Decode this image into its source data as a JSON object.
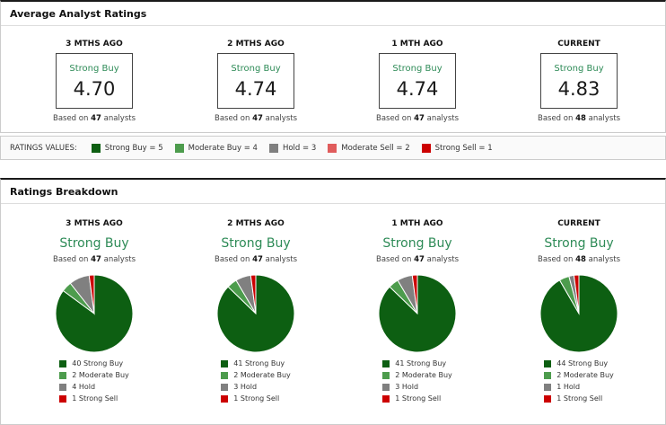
{
  "strings": {
    "based_prefix": "Based on",
    "based_suffix": "analysts"
  },
  "colors": {
    "strong_buy": "#0d5f12",
    "moderate_buy": "#4d9c4d",
    "hold": "#808080",
    "moderate_sell": "#e05c5c",
    "strong_sell": "#cc0000",
    "rating_text_green": "#2e8b57"
  },
  "average_ratings": {
    "title": "Average Analyst Ratings",
    "columns": [
      {
        "period": "3 MTHS AGO",
        "rating": "Strong Buy",
        "value": "4.70",
        "analysts": "47"
      },
      {
        "period": "2 MTHS AGO",
        "rating": "Strong Buy",
        "value": "4.74",
        "analysts": "47"
      },
      {
        "period": "1 MTH AGO",
        "rating": "Strong Buy",
        "value": "4.74",
        "analysts": "47"
      },
      {
        "period": "CURRENT",
        "rating": "Strong Buy",
        "value": "4.83",
        "analysts": "48"
      }
    ]
  },
  "ratings_values": {
    "label": "RATINGS VALUES:",
    "items": [
      {
        "label": "Strong Buy = 5",
        "color": "#0d5f12"
      },
      {
        "label": "Moderate Buy = 4",
        "color": "#4d9c4d"
      },
      {
        "label": "Hold = 3",
        "color": "#808080"
      },
      {
        "label": "Moderate Sell = 2",
        "color": "#e05c5c"
      },
      {
        "label": "Strong Sell = 1",
        "color": "#cc0000"
      }
    ]
  },
  "breakdown": {
    "title": "Ratings Breakdown",
    "columns": [
      {
        "period": "3 MTHS AGO",
        "rating": "Strong Buy",
        "analysts": "47",
        "slices": [
          {
            "label": "40 Strong Buy",
            "value": 40,
            "color": "#0d5f12"
          },
          {
            "label": "2 Moderate Buy",
            "value": 2,
            "color": "#4d9c4d"
          },
          {
            "label": "4 Hold",
            "value": 4,
            "color": "#808080"
          },
          {
            "label": "1 Strong Sell",
            "value": 1,
            "color": "#cc0000"
          }
        ]
      },
      {
        "period": "2 MTHS AGO",
        "rating": "Strong Buy",
        "analysts": "47",
        "slices": [
          {
            "label": "41 Strong Buy",
            "value": 41,
            "color": "#0d5f12"
          },
          {
            "label": "2 Moderate Buy",
            "value": 2,
            "color": "#4d9c4d"
          },
          {
            "label": "3 Hold",
            "value": 3,
            "color": "#808080"
          },
          {
            "label": "1 Strong Sell",
            "value": 1,
            "color": "#cc0000"
          }
        ]
      },
      {
        "period": "1 MTH AGO",
        "rating": "Strong Buy",
        "analysts": "47",
        "slices": [
          {
            "label": "41 Strong Buy",
            "value": 41,
            "color": "#0d5f12"
          },
          {
            "label": "2 Moderate Buy",
            "value": 2,
            "color": "#4d9c4d"
          },
          {
            "label": "3 Hold",
            "value": 3,
            "color": "#808080"
          },
          {
            "label": "1 Strong Sell",
            "value": 1,
            "color": "#cc0000"
          }
        ]
      },
      {
        "period": "CURRENT",
        "rating": "Strong Buy",
        "analysts": "48",
        "slices": [
          {
            "label": "44 Strong Buy",
            "value": 44,
            "color": "#0d5f12"
          },
          {
            "label": "2 Moderate Buy",
            "value": 2,
            "color": "#4d9c4d"
          },
          {
            "label": "1 Hold",
            "value": 1,
            "color": "#808080"
          },
          {
            "label": "1 Strong Sell",
            "value": 1,
            "color": "#cc0000"
          }
        ]
      }
    ]
  },
  "chart_data": [
    {
      "type": "table",
      "title": "Average Analyst Ratings",
      "categories": [
        "3 MTHS AGO",
        "2 MTHS AGO",
        "1 MTH AGO",
        "CURRENT"
      ],
      "values": [
        4.7,
        4.74,
        4.74,
        4.83
      ],
      "rating_labels": [
        "Strong Buy",
        "Strong Buy",
        "Strong Buy",
        "Strong Buy"
      ],
      "analysts": [
        47,
        47,
        47,
        48
      ],
      "scale_note": "Strong Buy = 5, Moderate Buy = 4, Hold = 3, Moderate Sell = 2, Strong Sell = 1"
    },
    {
      "type": "pie",
      "title": "3 MTHS AGO",
      "subtitle": "Strong Buy",
      "total": 47,
      "labels": [
        "Strong Buy",
        "Moderate Buy",
        "Hold",
        "Strong Sell"
      ],
      "values": [
        40,
        2,
        4,
        1
      ],
      "colors": [
        "#0d5f12",
        "#4d9c4d",
        "#808080",
        "#cc0000"
      ],
      "legend_position": "bottom"
    },
    {
      "type": "pie",
      "title": "2 MTHS AGO",
      "subtitle": "Strong Buy",
      "total": 47,
      "labels": [
        "Strong Buy",
        "Moderate Buy",
        "Hold",
        "Strong Sell"
      ],
      "values": [
        41,
        2,
        3,
        1
      ],
      "colors": [
        "#0d5f12",
        "#4d9c4d",
        "#808080",
        "#cc0000"
      ],
      "legend_position": "bottom"
    },
    {
      "type": "pie",
      "title": "1 MTH AGO",
      "subtitle": "Strong Buy",
      "total": 47,
      "labels": [
        "Strong Buy",
        "Moderate Buy",
        "Hold",
        "Strong Sell"
      ],
      "values": [
        41,
        2,
        3,
        1
      ],
      "colors": [
        "#0d5f12",
        "#4d9c4d",
        "#808080",
        "#cc0000"
      ],
      "legend_position": "bottom"
    },
    {
      "type": "pie",
      "title": "CURRENT",
      "subtitle": "Strong Buy",
      "total": 48,
      "labels": [
        "Strong Buy",
        "Moderate Buy",
        "Hold",
        "Strong Sell"
      ],
      "values": [
        44,
        2,
        1,
        1
      ],
      "colors": [
        "#0d5f12",
        "#4d9c4d",
        "#808080",
        "#cc0000"
      ],
      "legend_position": "bottom"
    }
  ]
}
